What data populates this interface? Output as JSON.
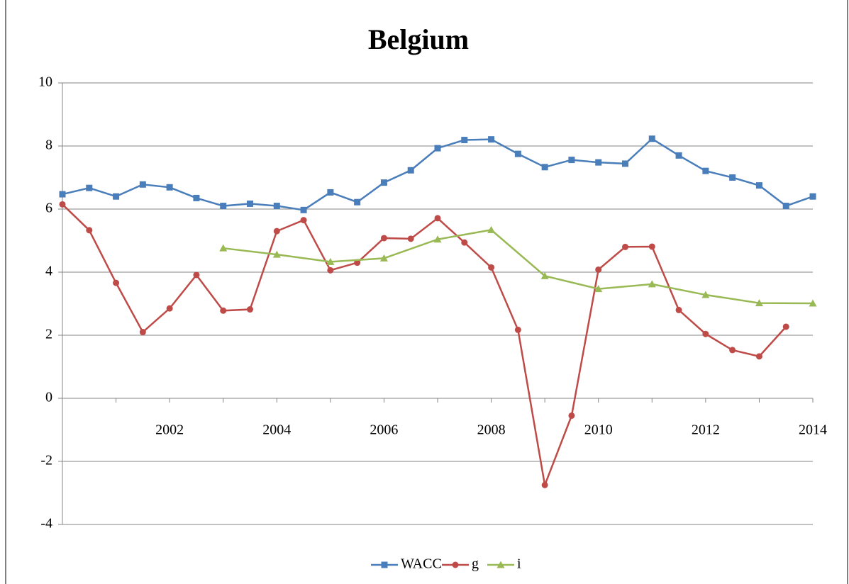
{
  "chart_data": {
    "type": "line",
    "title": "Belgium",
    "x": [
      2000,
      2000.5,
      2001,
      2001.5,
      2002,
      2002.5,
      2003,
      2003.5,
      2004,
      2004.5,
      2005,
      2005.5,
      2006,
      2006.5,
      2007,
      2007.5,
      2008,
      2008.5,
      2009,
      2009.5,
      2010,
      2010.5,
      2011,
      2011.5,
      2012,
      2012.5,
      2013,
      2013.5,
      2014
    ],
    "series": [
      {
        "name": "WACC",
        "color": "#4a7ebb",
        "marker": "square",
        "values": [
          6.47,
          6.67,
          6.4,
          6.78,
          6.69,
          6.35,
          6.1,
          6.17,
          6.1,
          5.97,
          6.53,
          6.22,
          6.84,
          7.23,
          7.93,
          8.19,
          8.21,
          7.75,
          7.33,
          7.56,
          7.48,
          7.44,
          8.23,
          7.7,
          7.21,
          7.0,
          6.75,
          6.1,
          6.4
        ]
      },
      {
        "name": "g",
        "color": "#be4b48",
        "marker": "circle",
        "values": [
          6.15,
          5.33,
          3.66,
          2.1,
          2.85,
          3.91,
          2.78,
          2.82,
          5.3,
          5.65,
          4.06,
          4.3,
          5.08,
          5.06,
          5.71,
          4.94,
          4.15,
          2.17,
          -2.75,
          -0.55,
          4.08,
          4.8,
          4.81,
          2.8,
          2.04,
          1.53,
          1.33,
          2.27,
          null
        ]
      },
      {
        "name": "i",
        "color": "#98b954",
        "marker": "triangle",
        "x": [
          2003,
          2004,
          2005,
          2006,
          2007,
          2008,
          2009,
          2010,
          2011,
          2012,
          2013,
          2014
        ],
        "values": [
          4.76,
          4.56,
          4.33,
          4.44,
          5.04,
          5.34,
          3.88,
          3.47,
          3.62,
          3.28,
          3.02,
          3.01
        ]
      }
    ],
    "xlim": [
      2000,
      2014
    ],
    "xticks": [
      2002,
      2004,
      2006,
      2008,
      2010,
      2012,
      2014
    ],
    "xminorticks": [
      2001,
      2003,
      2005,
      2007,
      2009,
      2011,
      2013
    ],
    "ylim": [
      -4,
      10
    ],
    "yticks": [
      -4,
      -2,
      0,
      2,
      4,
      6,
      8,
      10
    ],
    "grid": true,
    "legend": "bottom"
  }
}
